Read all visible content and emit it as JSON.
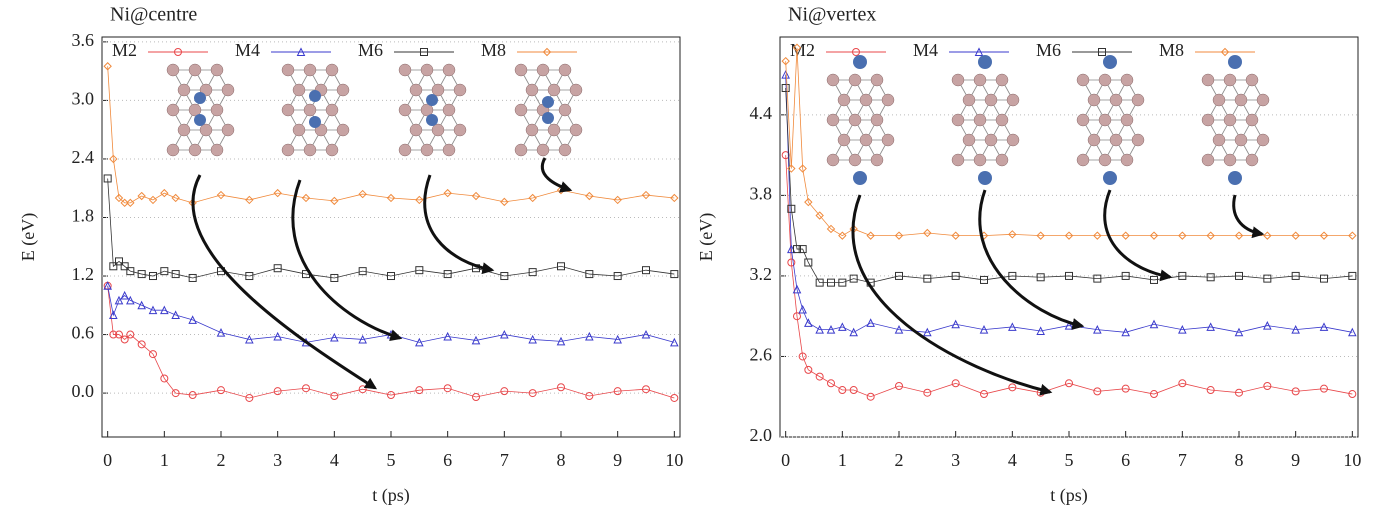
{
  "chart_data": [
    {
      "type": "line",
      "title": "Ni@centre",
      "xlabel": "t (ps)",
      "ylabel": "E (eV)",
      "xlim": [
        -0.1,
        10.1
      ],
      "xticks": [
        0,
        1,
        2,
        3,
        4,
        5,
        6,
        7,
        8,
        9,
        10
      ],
      "ylim": [
        -0.45,
        3.65
      ],
      "yticks": [
        {
          "value": 0,
          "label": "0.0"
        },
        0.6,
        1.2,
        1.8,
        2.4,
        {
          "value": 3,
          "label": "3.0"
        },
        3.6
      ],
      "grid": true,
      "x": [
        0,
        0.1,
        0.2,
        0.3,
        0.4,
        0.6,
        0.8,
        1,
        1.2,
        1.5,
        2,
        2.5,
        3,
        3.5,
        4,
        4.5,
        5,
        5.5,
        6,
        6.5,
        7,
        7.5,
        8,
        8.5,
        9,
        9.5,
        10
      ],
      "series": [
        {
          "name": "M2",
          "color": "#e8474a",
          "marker": "circle",
          "values": [
            1.1,
            0.6,
            0.6,
            0.55,
            0.6,
            0.5,
            0.4,
            0.15,
            0.0,
            -0.02,
            0.03,
            -0.05,
            0.02,
            0.05,
            -0.03,
            0.04,
            -0.02,
            0.03,
            0.05,
            -0.04,
            0.02,
            0.0,
            0.06,
            -0.03,
            0.02,
            0.04,
            -0.05
          ]
        },
        {
          "name": "M4",
          "color": "#3a3acc",
          "marker": "triangle",
          "values": [
            1.1,
            0.8,
            0.95,
            1.0,
            0.95,
            0.9,
            0.85,
            0.85,
            0.8,
            0.75,
            0.62,
            0.55,
            0.58,
            0.52,
            0.57,
            0.55,
            0.6,
            0.52,
            0.58,
            0.54,
            0.6,
            0.55,
            0.53,
            0.58,
            0.55,
            0.6,
            0.52
          ]
        },
        {
          "name": "M6",
          "color": "#333333",
          "marker": "square",
          "values": [
            2.2,
            1.3,
            1.35,
            1.3,
            1.25,
            1.22,
            1.2,
            1.25,
            1.22,
            1.18,
            1.25,
            1.2,
            1.28,
            1.22,
            1.18,
            1.25,
            1.2,
            1.26,
            1.22,
            1.28,
            1.2,
            1.24,
            1.3,
            1.22,
            1.2,
            1.26,
            1.22
          ]
        },
        {
          "name": "M8",
          "color": "#f08a3c",
          "marker": "diamond",
          "values": [
            3.35,
            2.4,
            2.0,
            1.95,
            1.95,
            2.02,
            1.98,
            2.05,
            2.0,
            1.95,
            2.03,
            1.98,
            2.05,
            2.0,
            1.97,
            2.04,
            2.0,
            1.98,
            2.05,
            2.02,
            1.96,
            2.0,
            2.08,
            2.02,
            1.98,
            2.03,
            2.0
          ]
        }
      ]
    },
    {
      "type": "line",
      "title": "Ni@vertex",
      "xlabel": "t (ps)",
      "ylabel": "E (eV)",
      "xlim": [
        -0.1,
        10.1
      ],
      "xticks": [
        0,
        1,
        2,
        3,
        4,
        5,
        6,
        7,
        8,
        9,
        10
      ],
      "ylim": [
        2.0,
        4.98
      ],
      "yticks": [
        {
          "value": 2,
          "label": "2.0"
        },
        2.6,
        3.2,
        3.8,
        4.4
      ],
      "grid": true,
      "x": [
        0,
        0.1,
        0.2,
        0.3,
        0.4,
        0.6,
        0.8,
        1,
        1.2,
        1.5,
        2,
        2.5,
        3,
        3.5,
        4,
        4.5,
        5,
        5.5,
        6,
        6.5,
        7,
        7.5,
        8,
        8.5,
        9,
        9.5,
        10
      ],
      "series": [
        {
          "name": "M2",
          "color": "#e8474a",
          "marker": "circle",
          "values": [
            4.1,
            3.3,
            2.9,
            2.6,
            2.5,
            2.45,
            2.4,
            2.35,
            2.35,
            2.3,
            2.38,
            2.33,
            2.4,
            2.32,
            2.37,
            2.33,
            2.4,
            2.34,
            2.36,
            2.32,
            2.4,
            2.35,
            2.33,
            2.38,
            2.34,
            2.36,
            2.32
          ]
        },
        {
          "name": "M4",
          "color": "#3a3acc",
          "marker": "triangle",
          "values": [
            4.7,
            3.4,
            3.1,
            2.95,
            2.85,
            2.8,
            2.8,
            2.82,
            2.78,
            2.85,
            2.8,
            2.78,
            2.84,
            2.8,
            2.82,
            2.79,
            2.83,
            2.8,
            2.78,
            2.84,
            2.8,
            2.82,
            2.78,
            2.83,
            2.8,
            2.82,
            2.78
          ]
        },
        {
          "name": "M6",
          "color": "#333333",
          "marker": "square",
          "values": [
            4.6,
            3.7,
            3.4,
            3.4,
            3.3,
            3.15,
            3.15,
            3.15,
            3.18,
            3.15,
            3.2,
            3.18,
            3.2,
            3.17,
            3.2,
            3.19,
            3.2,
            3.18,
            3.2,
            3.17,
            3.2,
            3.19,
            3.2,
            3.18,
            3.2,
            3.18,
            3.2
          ]
        },
        {
          "name": "M8",
          "color": "#f08a3c",
          "marker": "diamond",
          "values": [
            4.8,
            4.0,
            4.9,
            4.0,
            3.75,
            3.65,
            3.55,
            3.5,
            3.55,
            3.5,
            3.5,
            3.52,
            3.5,
            3.5,
            3.51,
            3.5,
            3.5,
            3.5,
            3.5,
            3.5,
            3.5,
            3.5,
            3.5,
            3.5,
            3.5,
            3.5,
            3.5
          ]
        }
      ]
    }
  ]
}
